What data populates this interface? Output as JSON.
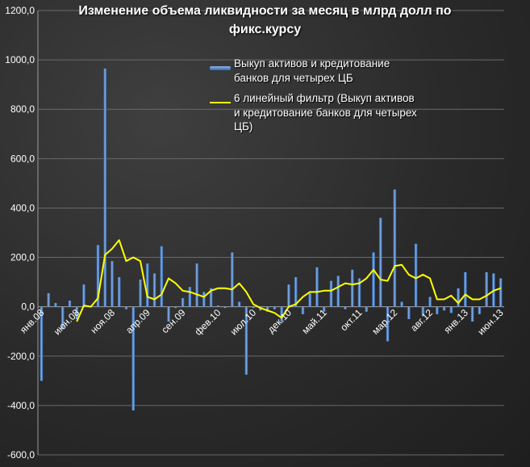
{
  "chart_data": {
    "type": "bar",
    "title_line1": "Изменение объема ликвидности за месяц в млрд долл по",
    "title_line2": "фикс.курсу",
    "y_ticks": [
      "1200,0",
      "1000,0",
      "800,0",
      "600,0",
      "400,0",
      "200,0",
      "0,0",
      "-200,0",
      "-400,0",
      "-600,0"
    ],
    "ylim": [
      -600,
      1200
    ],
    "x_tick_labels": [
      "янв.08",
      "июн.08",
      "ноя.08",
      "апр.09",
      "сен.09",
      "фев.10",
      "июл.10",
      "дек.10",
      "май.11",
      "окт.11",
      "мар.12",
      "авг.12",
      "янв.13",
      "июн.13"
    ],
    "x_tick_months": [
      0,
      5,
      10,
      15,
      20,
      25,
      30,
      35,
      40,
      45,
      50,
      55,
      60,
      65
    ],
    "grid": true,
    "legend_position": "top-right",
    "colors": {
      "bar": "#3a74c4",
      "line": "#ffff00",
      "text": "#ffffff",
      "grid": "#6a6a6a"
    },
    "series": [
      {
        "name": "Выкуп активов и кредитование банков для четырех ЦБ",
        "kind": "bar",
        "values": [
          -300,
          55,
          15,
          -90,
          25,
          -50,
          90,
          5,
          250,
          965,
          185,
          120,
          -10,
          -420,
          110,
          175,
          135,
          245,
          -60,
          -5,
          35,
          80,
          175,
          60,
          75,
          5,
          -5,
          220,
          20,
          -275,
          -5,
          -15,
          -20,
          -10,
          -60,
          90,
          120,
          -30,
          55,
          160,
          -20,
          105,
          125,
          -10,
          150,
          115,
          -20,
          220,
          360,
          -140,
          475,
          20,
          -50,
          255,
          -35,
          40,
          -30,
          -15,
          -25,
          75,
          140,
          -60,
          -30,
          140,
          135,
          115
        ]
      },
      {
        "name": "6 линейный фильтр (Выкуп активов и кредитование банков для четырех ЦБ)",
        "kind": "line",
        "start_index": 5,
        "values": [
          -60,
          5,
          0,
          35,
          210,
          235,
          270,
          185,
          200,
          185,
          40,
          30,
          50,
          115,
          95,
          65,
          60,
          50,
          40,
          65,
          75,
          75,
          70,
          95,
          60,
          10,
          -5,
          -15,
          -25,
          -45,
          0,
          10,
          40,
          60,
          60,
          65,
          65,
          80,
          95,
          90,
          95,
          115,
          150,
          110,
          105,
          165,
          170,
          130,
          115,
          130,
          115,
          30,
          30,
          45,
          15,
          50,
          30,
          30,
          45,
          65,
          75
        ]
      }
    ]
  }
}
